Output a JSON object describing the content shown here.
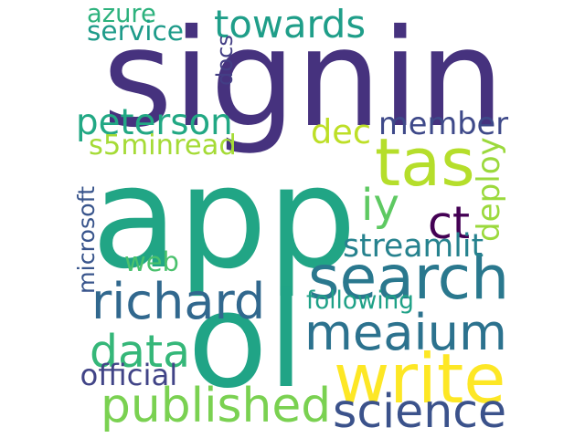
{
  "wordcloud": {
    "words": [
      {
        "text": "signin",
        "color": "#46327e",
        "vertical": false
      },
      {
        "text": "app",
        "color": "#21a585",
        "vertical": false
      },
      {
        "text": "ol",
        "color": "#20a486",
        "vertical": false
      },
      {
        "text": "towards",
        "color": "#1f9e89",
        "vertical": false
      },
      {
        "text": "tas",
        "color": "#b5de2b",
        "vertical": false
      },
      {
        "text": "search",
        "color": "#2a788e",
        "vertical": false
      },
      {
        "text": "meaium",
        "color": "#2c728e",
        "vertical": false
      },
      {
        "text": "write",
        "color": "#fde725",
        "vertical": false
      },
      {
        "text": "science",
        "color": "#3b528b",
        "vertical": false
      },
      {
        "text": "published",
        "color": "#7ad151",
        "vertical": false
      },
      {
        "text": "data",
        "color": "#35b779",
        "vertical": false
      },
      {
        "text": "richard",
        "color": "#31688e",
        "vertical": false
      },
      {
        "text": "peterson",
        "color": "#22a884",
        "vertical": false
      },
      {
        "text": "s5minread",
        "color": "#a5db36",
        "vertical": false
      },
      {
        "text": "dec",
        "color": "#bddf26",
        "vertical": false
      },
      {
        "text": "member",
        "color": "#3e4989",
        "vertical": false
      },
      {
        "text": "iy",
        "color": "#5ec962",
        "vertical": false
      },
      {
        "text": "ct",
        "color": "#440154",
        "vertical": false
      },
      {
        "text": "deploy",
        "color": "#9bd93c",
        "vertical": true
      },
      {
        "text": "streamlit",
        "color": "#26828e",
        "vertical": false
      },
      {
        "text": "web",
        "color": "#4ac16d",
        "vertical": false
      },
      {
        "text": "following",
        "color": "#1fa187",
        "vertical": false
      },
      {
        "text": "microsoft",
        "color": "#39558c",
        "vertical": true
      },
      {
        "text": "official",
        "color": "#414487",
        "vertical": false
      },
      {
        "text": "azure",
        "color": "#2db27d",
        "vertical": false
      },
      {
        "text": "service",
        "color": "#1e9b8a",
        "vertical": false
      },
      {
        "text": "docs",
        "color": "#433e85",
        "vertical": true
      }
    ]
  }
}
